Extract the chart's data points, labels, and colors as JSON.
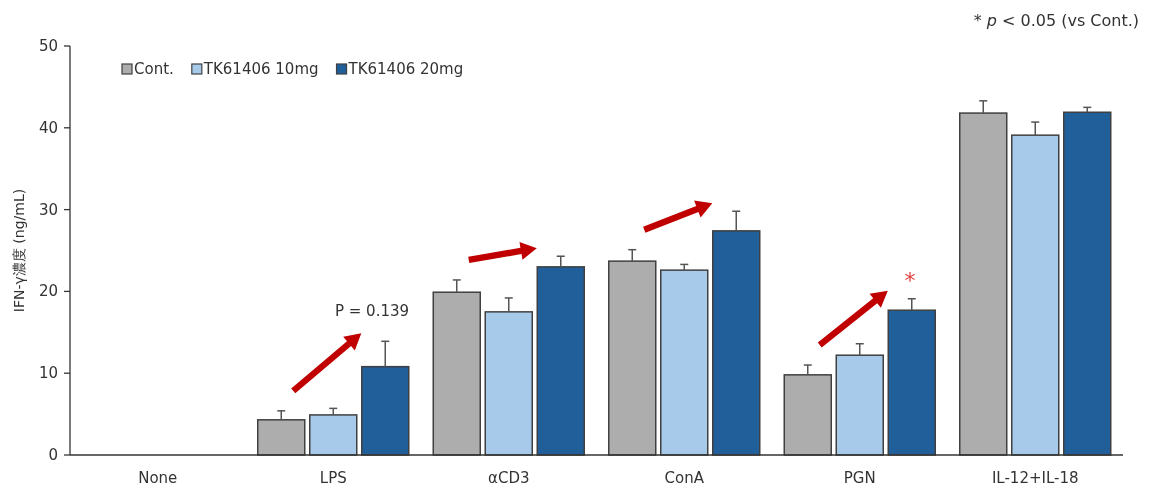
{
  "chart_data": {
    "type": "bar",
    "ylabel": "IFN-γ濃度 (ng/mL)",
    "categories": [
      "None",
      "LPS",
      "αCD3",
      "ConA",
      "PGN",
      "IL-12+IL-18"
    ],
    "series": [
      {
        "name": "Cont.",
        "color": "#adadad",
        "values": [
          null,
          4.3,
          19.9,
          23.7,
          9.8,
          41.8
        ],
        "errors": [
          null,
          [
            4.3,
            5.4
          ],
          [
            19.9,
            21.4
          ],
          [
            23.7,
            25.1
          ],
          [
            9.8,
            11.0
          ],
          [
            41.8,
            43.3
          ]
        ]
      },
      {
        "name": "TK61406 10mg",
        "color": "#a7c9ea",
        "values": [
          null,
          4.9,
          17.5,
          22.6,
          12.2,
          39.1
        ],
        "errors": [
          null,
          [
            4.9,
            5.7
          ],
          [
            17.5,
            19.2
          ],
          [
            22.6,
            23.3
          ],
          [
            12.2,
            13.6
          ],
          [
            39.1,
            40.7
          ]
        ]
      },
      {
        "name": "TK61406 20mg",
        "color": "#215f9a",
        "values": [
          null,
          10.8,
          23.0,
          27.4,
          17.7,
          41.9
        ],
        "errors": [
          null,
          [
            10.8,
            13.9
          ],
          [
            23.0,
            24.3
          ],
          [
            27.4,
            29.8
          ],
          [
            17.7,
            19.1
          ],
          [
            41.9,
            42.5
          ]
        ]
      }
    ],
    "ylim": [
      0,
      50
    ],
    "yticks": [
      0,
      10,
      20,
      30,
      40,
      50
    ],
    "grid": false,
    "legend": "top left",
    "annotations": [
      "* *p* < 0.05 (vs Cont.)",
      "P = 0.139",
      "*"
    ]
  }
}
